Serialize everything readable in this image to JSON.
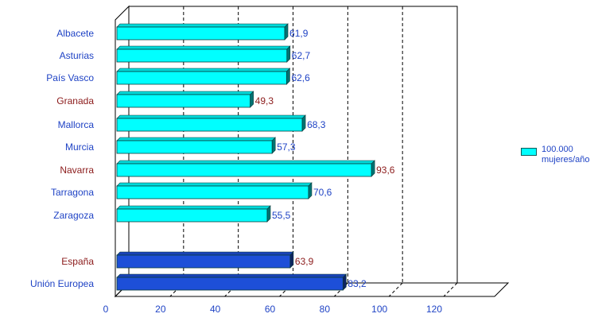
{
  "chart_data": {
    "type": "bar",
    "orientation": "horizontal",
    "legend_position": "right",
    "grid": true,
    "xlim": [
      0,
      120
    ],
    "x_ticks": [
      "0",
      "20",
      "40",
      "60",
      "80",
      "100",
      "120"
    ],
    "categories": [
      "Albacete",
      "Asturias",
      "País Vasco",
      "Granada",
      "Mallorca",
      "Murcia",
      "Navarra",
      "Tarragona",
      "Zaragoza",
      "España",
      "Unión Europea"
    ],
    "value_labels": [
      "61,9",
      "62,7",
      "62,6",
      "49,3",
      "68,3",
      "57,3",
      "93,6",
      "70,6",
      "55,5",
      "63,9",
      "83,2"
    ],
    "values": [
      61.9,
      62.7,
      62.6,
      49.3,
      68.3,
      57.3,
      93.6,
      70.6,
      55.5,
      63.9,
      83.2
    ],
    "category_colors": [
      "#1f43c5",
      "#1f43c5",
      "#1f43c5",
      "#8b1a1a",
      "#1f43c5",
      "#1f43c5",
      "#8b1a1a",
      "#1f43c5",
      "#1f43c5",
      "#8b1a1a",
      "#1f43c5"
    ],
    "value_label_colors": [
      "#1f43c5",
      "#1f43c5",
      "#1f43c5",
      "#8b1a1a",
      "#1f43c5",
      "#1f43c5",
      "#8b1a1a",
      "#1f43c5",
      "#1f43c5",
      "#8b1a1a",
      "#1f43c5"
    ],
    "bar_colors": [
      "#00ffff",
      "#00ffff",
      "#00ffff",
      "#00ffff",
      "#00ffff",
      "#00ffff",
      "#00ffff",
      "#00ffff",
      "#00ffff",
      "#1d4fd8",
      "#1d4fd8"
    ],
    "series": [
      {
        "name": "100.000 mujeres/año"
      }
    ]
  },
  "legend": {
    "label": "100.000 mujeres/año",
    "color": "#00ffff"
  }
}
